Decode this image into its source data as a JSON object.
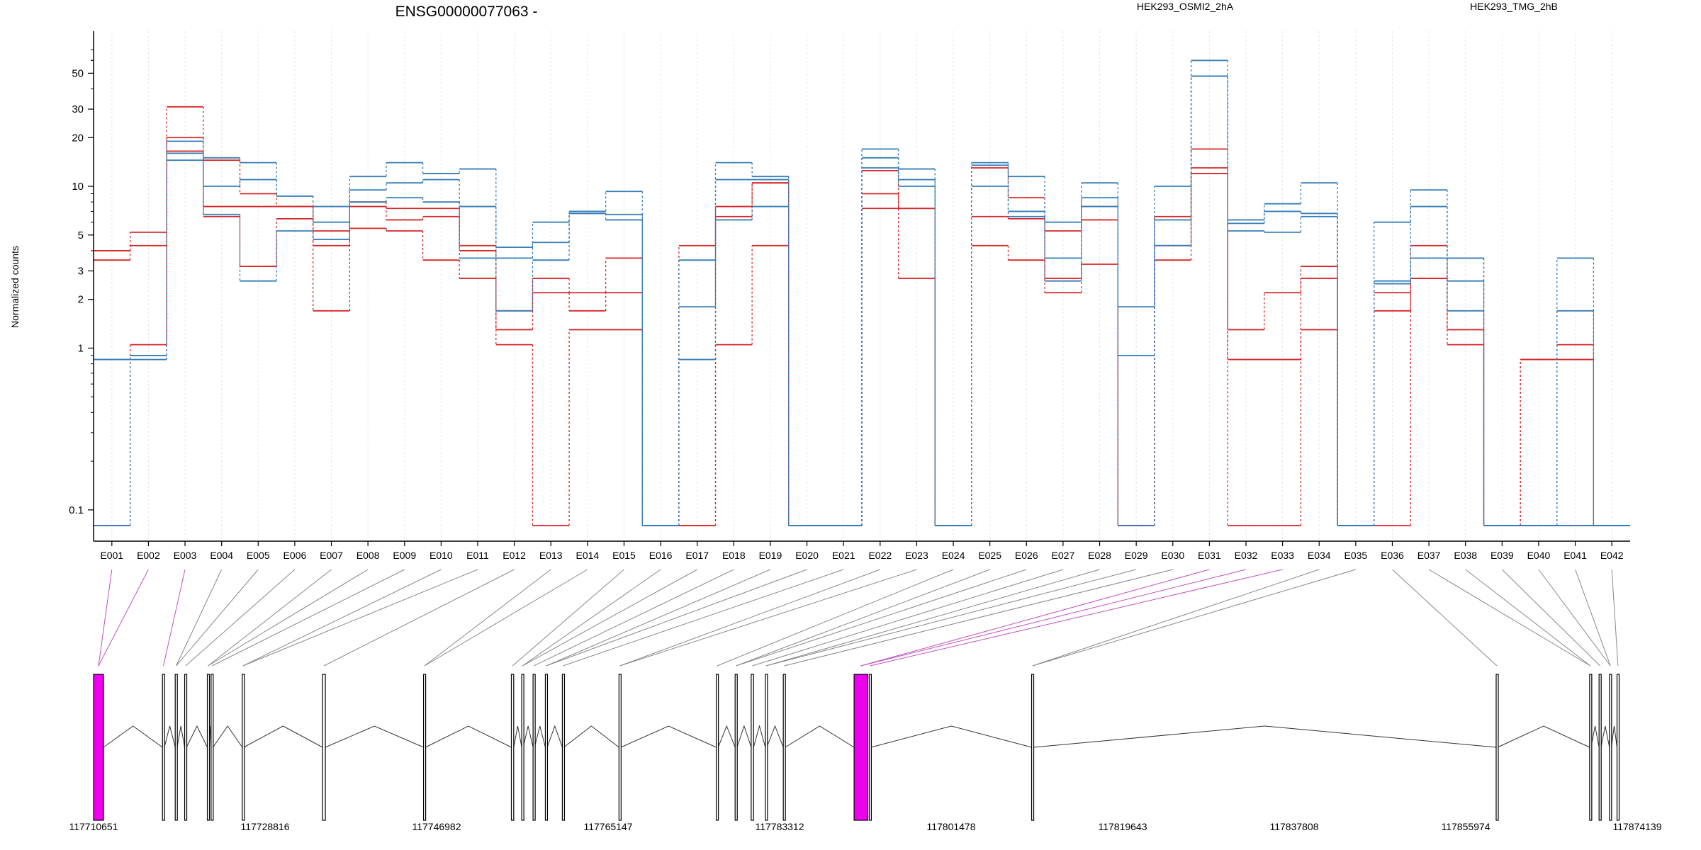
{
  "chart_data": {
    "type": "line",
    "title": "ENSG00000077063 -",
    "ylabel": "Normalized counts",
    "y_scale": "log",
    "ylim": [
      0.08,
      70
    ],
    "y_ticks": [
      "0.1",
      "1",
      "2",
      "3",
      "5",
      "10",
      "20",
      "30",
      "50"
    ],
    "y_tick_values": [
      0.1,
      1,
      2,
      3,
      5,
      10,
      20,
      30,
      50
    ],
    "categories": [
      "E001",
      "E002",
      "E003",
      "E004",
      "E005",
      "E006",
      "E007",
      "E008",
      "E009",
      "E010",
      "E011",
      "E012",
      "E013",
      "E014",
      "E015",
      "E016",
      "E017",
      "E018",
      "E019",
      "E020",
      "E021",
      "E022",
      "E023",
      "E024",
      "E025",
      "E026",
      "E027",
      "E028",
      "E029",
      "E030",
      "E031",
      "E032",
      "E033",
      "E034",
      "E035",
      "E036",
      "E037",
      "E038",
      "E039",
      "E040",
      "E041",
      "E042"
    ],
    "legend": [
      {
        "label": "HEK293_OSMI2_2hA",
        "color": "#d62728"
      },
      {
        "label": "HEK293_TMG_2hB",
        "color": "#377eb8"
      }
    ],
    "series": [
      {
        "group": "red",
        "values": [
          4,
          5.2,
          20,
          14.5,
          9,
          7.5,
          5.3,
          7.5,
          7.3,
          7.3,
          4.3,
          1.3,
          2.7,
          2.2,
          3.6,
          0.08,
          0.08,
          7.5,
          10.5,
          0.08,
          0.08,
          12.5,
          7.3,
          0.08,
          13,
          8.5,
          5.3,
          7.5,
          0.08,
          6.5,
          17,
          0.08,
          0.08,
          1.3,
          0.08,
          0.08,
          2.7,
          3.6,
          0.08,
          0.08,
          0.08,
          0.08
        ]
      },
      {
        "group": "red",
        "values": [
          3.5,
          4.3,
          16.5,
          7.5,
          7.5,
          7.5,
          4.3,
          8,
          6.2,
          6.5,
          4,
          1.7,
          2.2,
          1.7,
          2.2,
          0.08,
          4.3,
          6.5,
          10.5,
          0.08,
          0.08,
          9,
          7.3,
          0.08,
          6.5,
          6.3,
          2.2,
          6.2,
          0.08,
          4.3,
          13,
          1.3,
          2.2,
          3.2,
          0.08,
          2.2,
          4.3,
          1.3,
          0.08,
          0.85,
          0.85,
          0.08
        ]
      },
      {
        "group": "red",
        "values": [
          0.08,
          1.05,
          31,
          6.5,
          3.2,
          6.3,
          1.7,
          5.5,
          5.3,
          3.5,
          2.7,
          1.05,
          0.08,
          1.3,
          1.3,
          0.08,
          0.08,
          1.05,
          4.3,
          0.08,
          0.08,
          7.3,
          2.7,
          0.08,
          4.3,
          3.5,
          2.7,
          3.3,
          0.08,
          3.5,
          12,
          0.85,
          0.85,
          2.7,
          0.08,
          1.7,
          2.7,
          1.05,
          0.08,
          0.85,
          1.05,
          0.08
        ]
      },
      {
        "group": "blue",
        "values": [
          0.85,
          0.85,
          19,
          15,
          14,
          8.7,
          7.5,
          11.5,
          14,
          12,
          12.8,
          4.2,
          6,
          7,
          9.3,
          0.08,
          3.5,
          14,
          11.5,
          0.08,
          0.08,
          17,
          12.8,
          0.08,
          14,
          11.5,
          6,
          10.5,
          1.8,
          10,
          60,
          6.2,
          7.8,
          10.5,
          0.08,
          6,
          9.5,
          3.6,
          0.08,
          0.08,
          3.6,
          0.08
        ]
      },
      {
        "group": "blue",
        "values": [
          0.08,
          0.9,
          16,
          10,
          11,
          8.7,
          6,
          9.5,
          10.5,
          11,
          7.5,
          3.6,
          4.5,
          6.8,
          6.7,
          0.08,
          1.8,
          11,
          11,
          0.08,
          0.08,
          15,
          11,
          0.08,
          13.5,
          7,
          3.6,
          8.5,
          0.9,
          6.2,
          48,
          5.9,
          7,
          6.8,
          0.08,
          2.6,
          7.5,
          2.6,
          0.08,
          0.08,
          1.7,
          0.08
        ]
      },
      {
        "group": "blue",
        "values": [
          0.85,
          0.9,
          14.5,
          6.7,
          2.6,
          5.3,
          4.7,
          8,
          8.5,
          8,
          3.6,
          1.7,
          3.5,
          6.8,
          6.2,
          0.08,
          0.85,
          6.2,
          7.5,
          0.08,
          0.08,
          13,
          10,
          0.08,
          10,
          6.5,
          2.6,
          7.5,
          0.08,
          4.3,
          48,
          5.3,
          5.2,
          6.5,
          0.08,
          2.5,
          3.6,
          1.7,
          0.08,
          0.08,
          0.08,
          0.08
        ]
      }
    ],
    "coordinate_ticks": [
      "117710651",
      "117728816",
      "117746982",
      "117765147",
      "117783312",
      "117801478",
      "117819643",
      "117837808",
      "117855974",
      "117874139"
    ],
    "coordinate_range": [
      117710651,
      117874139
    ],
    "exons": [
      [
        117710651,
        117711700
      ],
      [
        117717950,
        117718150
      ],
      [
        117719300,
        117719500
      ],
      [
        117720300,
        117720500
      ],
      [
        117722700,
        117722850
      ],
      [
        117723100,
        117723300
      ],
      [
        117726400,
        117726550
      ],
      [
        117734900,
        117735200
      ],
      [
        117745600,
        117745800
      ],
      [
        117754900,
        117755150
      ],
      [
        117756000,
        117756150
      ],
      [
        117757200,
        117757350
      ],
      [
        117758500,
        117758700
      ],
      [
        117760300,
        117760450
      ],
      [
        117766300,
        117766500
      ],
      [
        117776600,
        117776800
      ],
      [
        117778600,
        117778800
      ],
      [
        117780300,
        117780550
      ],
      [
        117781800,
        117781950
      ],
      [
        117783700,
        117783900
      ],
      [
        117791200,
        117792650
      ],
      [
        117792800,
        117793000
      ],
      [
        117810000,
        117810200
      ],
      [
        117859200,
        117859350
      ],
      [
        117869100,
        117869250
      ],
      [
        117870100,
        117870300
      ],
      [
        117871200,
        117871400
      ],
      [
        117872000,
        117872200
      ]
    ],
    "highlighted_exons": [
      0,
      20
    ],
    "highlight_color": "#ee00ee"
  }
}
